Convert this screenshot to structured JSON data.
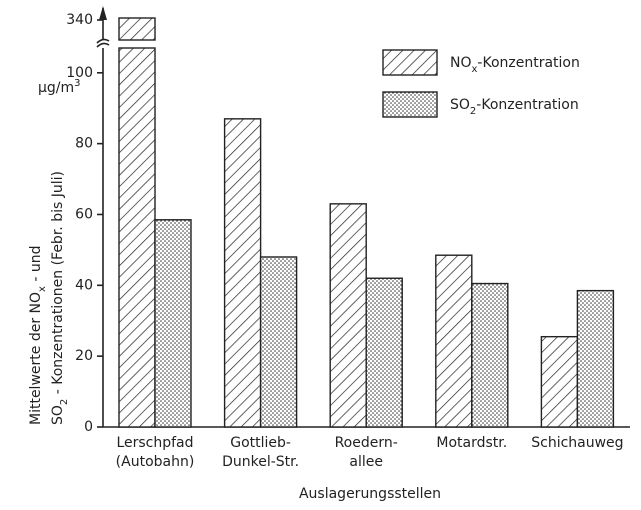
{
  "chart_data": {
    "type": "bar",
    "y_label_lines": [
      "Mittelwerte der NOx - und",
      "SO2 - Konzentrationen (Febr. bis Juli)"
    ],
    "unit": "µg/m3",
    "x_label": "Auslagerungsstellen",
    "categories": [
      "Lerschpfad\n(Autobahn)",
      "Gottlieb-\nDunkel-Str.",
      "Roedern-\nallee",
      "Motardstr.",
      "Schichauweg"
    ],
    "series": [
      {
        "name": "NOx-Konzentration",
        "color": "#222222",
        "pattern": "hatch",
        "values": [
          340,
          87,
          63,
          48.5,
          25.5
        ]
      },
      {
        "name": "SO2-Konzentration",
        "color": "#222222",
        "pattern": "dots",
        "values": [
          58.5,
          48,
          42,
          40.5,
          38.5
        ]
      }
    ],
    "ylim": [
      0,
      107
    ],
    "yticks": [
      0,
      20,
      40,
      60,
      80,
      100
    ],
    "upper_tick": 340,
    "axis_break": true
  }
}
